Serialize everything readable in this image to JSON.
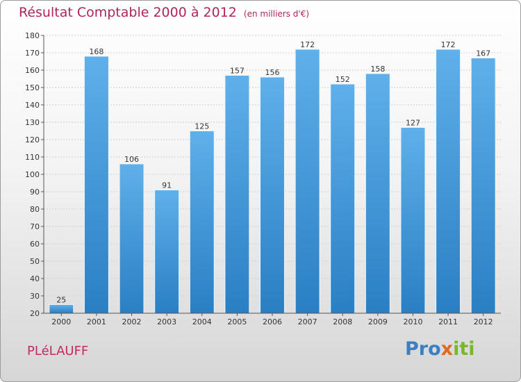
{
  "header": {
    "title": "Résultat Comptable 2000 à 2012",
    "subtitle": "(en milliers d'€)"
  },
  "footer": {
    "commune": "PLéLAUFF",
    "logo_parts": [
      "Pro",
      "x",
      "iti"
    ]
  },
  "colors": {
    "bar_top": "#5fb0ea",
    "bar_bottom": "#2a7fc4",
    "title": "#b0245a"
  },
  "chart_data": {
    "type": "bar",
    "categories": [
      "2000",
      "2001",
      "2002",
      "2003",
      "2004",
      "2005",
      "2006",
      "2007",
      "2008",
      "2009",
      "2010",
      "2011",
      "2012"
    ],
    "values": [
      25,
      168,
      106,
      91,
      125,
      157,
      156,
      172,
      152,
      158,
      127,
      172,
      167
    ],
    "ylim": [
      20,
      180
    ],
    "yticks": [
      20,
      30,
      40,
      50,
      60,
      70,
      80,
      90,
      100,
      110,
      120,
      130,
      140,
      150,
      160,
      170,
      180
    ],
    "grid": true,
    "data_labels": true
  }
}
